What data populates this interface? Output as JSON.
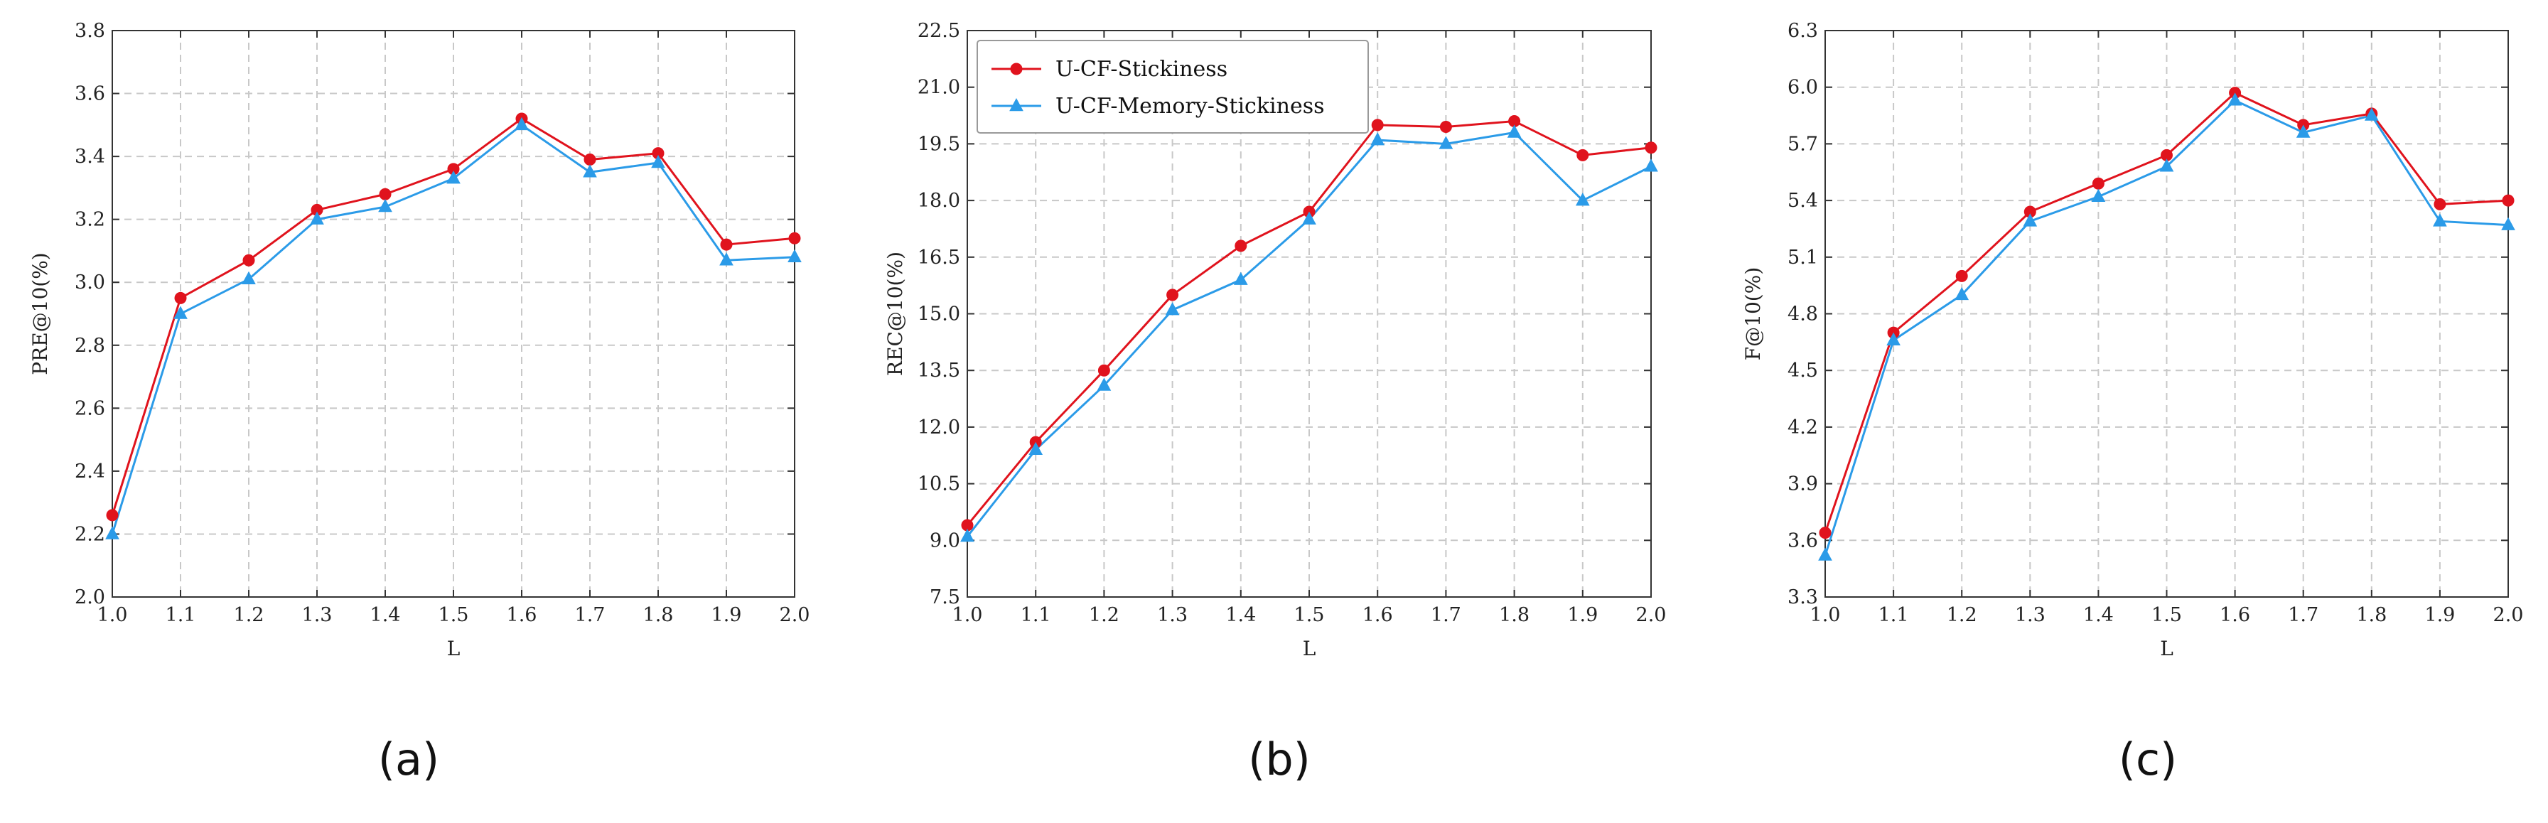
{
  "colors": {
    "stickiness": "#e0131d",
    "memory_stickiness": "#2b9be8",
    "grid": "#c8c8c8",
    "axis": "#333333"
  },
  "chart_data": [
    {
      "type": "line",
      "caption": "(a)",
      "xlabel": "L",
      "ylabel": "PRE@10(%)",
      "x": [
        1.0,
        1.1,
        1.2,
        1.3,
        1.4,
        1.5,
        1.6,
        1.7,
        1.8,
        1.9,
        2.0
      ],
      "x_tick_labels": [
        "1.0",
        "1.1",
        "1.2",
        "1.3",
        "1.4",
        "1.5",
        "1.6",
        "1.7",
        "1.8",
        "1.9",
        "2.0"
      ],
      "ylim": [
        2.0,
        3.8
      ],
      "y_tick_labels": [
        "2.0",
        "2.2",
        "2.4",
        "2.6",
        "2.8",
        "3.0",
        "3.2",
        "3.4",
        "3.6",
        "3.8"
      ],
      "grid": true,
      "series": [
        {
          "name": "U-CF-Stickiness",
          "marker": "circle",
          "values": [
            2.26,
            2.95,
            3.07,
            3.23,
            3.28,
            3.36,
            3.52,
            3.39,
            3.41,
            3.12,
            3.14
          ]
        },
        {
          "name": "U-CF-Memory-Stickiness",
          "marker": "triangle",
          "values": [
            2.2,
            2.9,
            3.01,
            3.2,
            3.24,
            3.33,
            3.5,
            3.35,
            3.38,
            3.07,
            3.08
          ]
        }
      ]
    },
    {
      "type": "line",
      "caption": "(b)",
      "xlabel": "L",
      "ylabel": "REC@10(%)",
      "x": [
        1.0,
        1.1,
        1.2,
        1.3,
        1.4,
        1.5,
        1.6,
        1.7,
        1.8,
        1.9,
        2.0
      ],
      "x_tick_labels": [
        "1.0",
        "1.1",
        "1.2",
        "1.3",
        "1.4",
        "1.5",
        "1.6",
        "1.7",
        "1.8",
        "1.9",
        "2.0"
      ],
      "ylim": [
        7.5,
        22.5
      ],
      "y_tick_labels": [
        "7.5",
        "9.0",
        "10.5",
        "12.0",
        "13.5",
        "15.0",
        "16.5",
        "18.0",
        "19.5",
        "21.0",
        "22.5"
      ],
      "grid": true,
      "legend": {
        "position": "top-left",
        "entries": [
          "U-CF-Stickiness",
          "U-CF-Memory-Stickiness"
        ]
      },
      "series": [
        {
          "name": "U-CF-Stickiness",
          "marker": "circle",
          "values": [
            9.4,
            11.6,
            13.5,
            15.5,
            16.8,
            17.7,
            20.0,
            19.95,
            20.1,
            19.2,
            19.4
          ]
        },
        {
          "name": "U-CF-Memory-Stickiness",
          "marker": "triangle",
          "values": [
            9.1,
            11.4,
            13.1,
            15.1,
            15.9,
            17.5,
            19.6,
            19.5,
            19.8,
            18.0,
            18.9
          ]
        }
      ]
    },
    {
      "type": "line",
      "caption": "(c)",
      "xlabel": "L",
      "ylabel": "F@10(%)",
      "x": [
        1.0,
        1.1,
        1.2,
        1.3,
        1.4,
        1.5,
        1.6,
        1.7,
        1.8,
        1.9,
        2.0
      ],
      "x_tick_labels": [
        "1.0",
        "1.1",
        "1.2",
        "1.3",
        "1.4",
        "1.5",
        "1.6",
        "1.7",
        "1.8",
        "1.9",
        "2.0"
      ],
      "ylim": [
        3.3,
        6.3
      ],
      "y_tick_labels": [
        "3.3",
        "3.6",
        "3.9",
        "4.2",
        "4.5",
        "4.8",
        "5.1",
        "5.4",
        "5.7",
        "6.0",
        "6.3"
      ],
      "grid": true,
      "series": [
        {
          "name": "U-CF-Stickiness",
          "marker": "circle",
          "values": [
            3.64,
            4.7,
            5.0,
            5.34,
            5.49,
            5.64,
            5.97,
            5.8,
            5.86,
            5.38,
            5.4
          ]
        },
        {
          "name": "U-CF-Memory-Stickiness",
          "marker": "triangle",
          "values": [
            3.52,
            4.66,
            4.9,
            5.29,
            5.42,
            5.58,
            5.93,
            5.76,
            5.85,
            5.29,
            5.27
          ]
        }
      ]
    }
  ]
}
